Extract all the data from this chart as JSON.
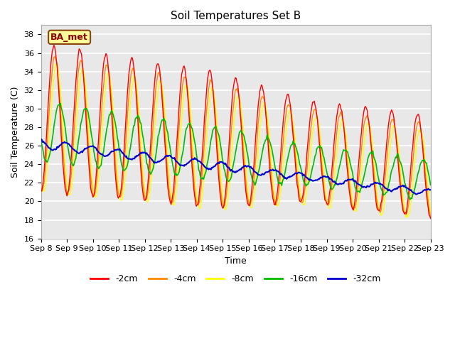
{
  "title": "Soil Temperatures Set B",
  "xlabel": "Time",
  "ylabel": "Soil Temperature (C)",
  "ylim": [
    16,
    39
  ],
  "yticks": [
    16,
    18,
    20,
    22,
    24,
    26,
    28,
    30,
    32,
    34,
    36,
    38
  ],
  "x_labels": [
    "Sep 8",
    "Sep 9",
    "Sep 10",
    "Sep 11",
    "Sep 12",
    "Sep 13",
    "Sep 14",
    "Sep 15",
    "Sep 16",
    "Sep 17",
    "Sep 18",
    "Sep 19",
    "Sep 20",
    "Sep 21",
    "Sep 22",
    "Sep 23"
  ],
  "colors": {
    "-2cm": "#ff0000",
    "-4cm": "#ff8800",
    "-8cm": "#ffff00",
    "-16cm": "#00bb00",
    "-32cm": "#0000cc"
  },
  "legend_label": "BA_met",
  "bg_color": "#e8e8e8",
  "fig_bg": "#ffffff",
  "n_points": 480
}
